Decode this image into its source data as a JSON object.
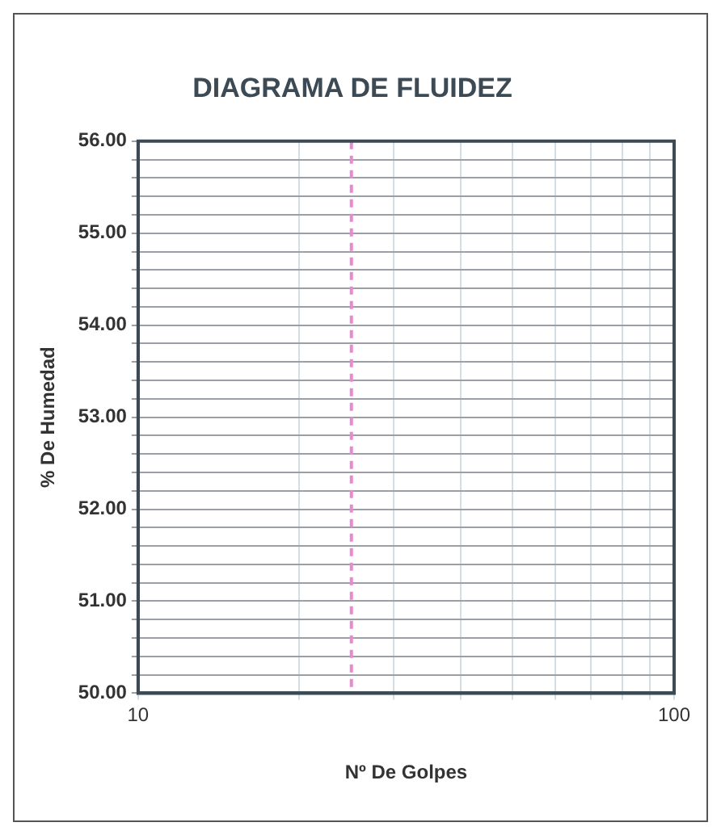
{
  "chart_data": {
    "type": "scatter",
    "title": "DIAGRAMA DE FLUIDEZ",
    "xlabel": "Nº De Golpes",
    "ylabel": "% De Humedad",
    "log": "x",
    "xlim": [
      10,
      100
    ],
    "xticks": [
      10,
      {
        "value": 20,
        "label": null
      },
      {
        "value": 30,
        "label": null
      },
      {
        "value": 40,
        "label": null
      },
      {
        "value": 50,
        "label": null
      },
      {
        "value": 60,
        "label": null
      },
      {
        "value": 70,
        "label": null
      },
      {
        "value": 80,
        "label": null
      },
      {
        "value": 90,
        "label": null
      },
      100
    ],
    "ylim": [
      50,
      56
    ],
    "yticks": [
      "50.00",
      {
        "value": 50.2,
        "label": null
      },
      {
        "value": 50.4,
        "label": null
      },
      {
        "value": 50.6,
        "label": null
      },
      {
        "value": 50.8,
        "label": null
      },
      {
        "value": 51,
        "label": "51.00"
      },
      {
        "value": 51.2,
        "label": null
      },
      {
        "value": 51.4,
        "label": null
      },
      {
        "value": 51.6,
        "label": null
      },
      {
        "value": 51.8,
        "label": null
      },
      {
        "value": 52,
        "label": "52.00"
      },
      {
        "value": 52.2,
        "label": null
      },
      {
        "value": 52.4,
        "label": null
      },
      {
        "value": 52.6,
        "label": null
      },
      {
        "value": 52.8,
        "label": null
      },
      {
        "value": 53,
        "label": "53.00"
      },
      {
        "value": 53.2,
        "label": null
      },
      {
        "value": 53.4,
        "label": null
      },
      {
        "value": 53.6,
        "label": null
      },
      {
        "value": 53.8,
        "label": null
      },
      {
        "value": 54,
        "label": "54.00"
      },
      {
        "value": 54.2,
        "label": null
      },
      {
        "value": 54.4,
        "label": null
      },
      {
        "value": 54.6,
        "label": null
      },
      {
        "value": 54.8,
        "label": null
      },
      {
        "value": 55,
        "label": "55.00"
      },
      {
        "value": 55.2,
        "label": null
      },
      {
        "value": 55.4,
        "label": null
      },
      {
        "value": 55.6,
        "label": null
      },
      {
        "value": 55.8,
        "label": null
      },
      {
        "value": 56,
        "label": "56.00"
      }
    ],
    "grid": true,
    "ref_lines": [
      {
        "axis": "x",
        "value": 25,
        "color": "#e88ad0",
        "line_style": "dashed"
      }
    ]
  }
}
